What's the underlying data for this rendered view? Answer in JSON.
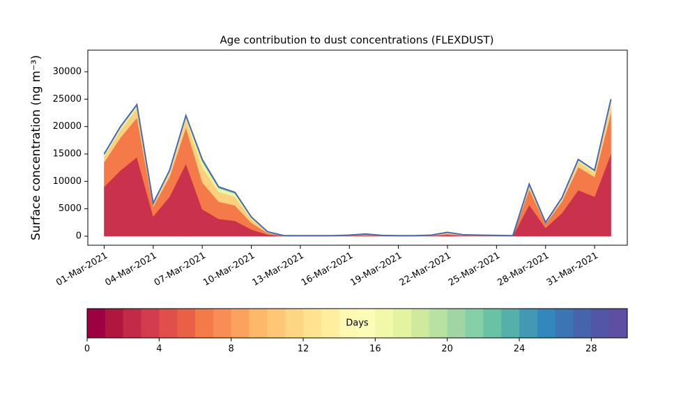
{
  "chart_data": {
    "type": "stacked-area",
    "title": "Age contribution to dust concentrations (FLEXDUST)",
    "y_label": "Surface concentration (ng m⁻³)",
    "x": [
      "2021-03-01",
      "2021-03-02",
      "2021-03-03",
      "2021-03-04",
      "2021-03-05",
      "2021-03-06",
      "2021-03-07",
      "2021-03-08",
      "2021-03-09",
      "2021-03-10",
      "2021-03-11",
      "2021-03-12",
      "2021-03-13",
      "2021-03-14",
      "2021-03-15",
      "2021-03-16",
      "2021-03-17",
      "2021-03-18",
      "2021-03-19",
      "2021-03-20",
      "2021-03-21",
      "2021-03-22",
      "2021-03-23",
      "2021-03-24",
      "2021-03-25",
      "2021-03-26",
      "2021-03-27",
      "2021-03-28",
      "2021-03-29",
      "2021-03-30",
      "2021-03-31",
      "2021-04-01"
    ],
    "series": [
      {
        "color": "#c9314c",
        "values": [
          9000,
          12000,
          14400,
          3600,
          7200,
          13200,
          4900,
          3150,
          2800,
          1225,
          280,
          30,
          30,
          30,
          30,
          60,
          120,
          45,
          30,
          30,
          60,
          210,
          75,
          60,
          45,
          30,
          5700,
          1500,
          4200,
          8400,
          7200,
          15000
        ]
      },
      {
        "color": "#f47a49",
        "values": [
          4500,
          6000,
          7200,
          1800,
          3600,
          6600,
          4900,
          3150,
          2800,
          1225,
          280,
          30,
          30,
          30,
          30,
          60,
          120,
          45,
          30,
          30,
          60,
          210,
          75,
          60,
          45,
          30,
          2850,
          750,
          2100,
          4200,
          3600,
          7500
        ]
      },
      {
        "color": "#fdd07e",
        "values": [
          1050,
          1400,
          1680,
          420,
          840,
          1540,
          2800,
          1800,
          1600,
          700,
          160,
          20,
          20,
          20,
          20,
          40,
          80,
          30,
          20,
          20,
          40,
          140,
          50,
          40,
          30,
          20,
          665,
          175,
          490,
          980,
          840,
          1750
        ]
      },
      {
        "color": "#eaf6a0",
        "values": [
          300,
          400,
          480,
          120,
          240,
          440,
          980,
          630,
          560,
          245,
          56,
          10,
          10,
          10,
          10,
          20,
          40,
          15,
          10,
          10,
          20,
          70,
          25,
          20,
          15,
          10,
          190,
          50,
          140,
          280,
          240,
          500
        ]
      },
      {
        "color": "#84cfa5",
        "values": [
          105,
          140,
          168,
          42,
          84,
          154,
          280,
          180,
          160,
          70,
          16,
          5,
          5,
          5,
          5,
          10,
          20,
          7.5,
          5,
          5,
          10,
          35,
          12.5,
          10,
          7.5,
          5,
          66.5,
          17.5,
          49,
          98,
          84,
          175
        ]
      },
      {
        "color": "#3d74b3",
        "values": [
          45,
          60,
          72,
          18,
          36,
          66,
          140,
          90,
          80,
          35,
          8,
          5,
          5,
          5,
          5,
          10,
          20,
          7.5,
          5,
          5,
          10,
          35,
          12.5,
          10,
          7.5,
          5,
          28.5,
          7.5,
          21,
          42,
          36,
          75
        ]
      }
    ],
    "outline_color": "#4a68ad",
    "xlim": [
      "2021-02-28",
      "2021-04-02"
    ],
    "xticks": [
      {
        "value": "2021-03-01",
        "label": "01-Mar-2021"
      },
      {
        "value": "2021-03-04",
        "label": "04-Mar-2021"
      },
      {
        "value": "2021-03-07",
        "label": "07-Mar-2021"
      },
      {
        "value": "2021-03-10",
        "label": "10-Mar-2021"
      },
      {
        "value": "2021-03-13",
        "label": "13-Mar-2021"
      },
      {
        "value": "2021-03-16",
        "label": "16-Mar-2021"
      },
      {
        "value": "2021-03-19",
        "label": "19-Mar-2021"
      },
      {
        "value": "2021-03-22",
        "label": "22-Mar-2021"
      },
      {
        "value": "2021-03-25",
        "label": "25-Mar-2021"
      },
      {
        "value": "2021-03-28",
        "label": "28-Mar-2021"
      },
      {
        "value": "2021-03-31",
        "label": "31-Mar-2021"
      }
    ],
    "ylim": [
      -1650,
      33940
    ],
    "yticks": [
      0,
      5000,
      10000,
      15000,
      20000,
      25000,
      30000
    ],
    "colorbar": {
      "label": "Days",
      "lim": [
        0,
        30
      ],
      "ticks": [
        0,
        4,
        8,
        12,
        16,
        20,
        24,
        28
      ],
      "colors": [
        "#9e0142",
        "#b0173f",
        "#c22a48",
        "#d33c4e",
        "#e04f4a",
        "#ea6046",
        "#f47a49",
        "#f88e53",
        "#fba35e",
        "#fdb869",
        "#fdc776",
        "#fed583",
        "#fee28f",
        "#feee9e",
        "#fff8b0",
        "#fbfcb6",
        "#f1f9a9",
        "#e3f3a0",
        "#cfea9d",
        "#b9e1a1",
        "#9fd6a4",
        "#84cfa5",
        "#6ac2a5",
        "#55afab",
        "#4399b4",
        "#3288bd",
        "#3c75b4",
        "#4664ab",
        "#5256a6",
        "#5e4fa2"
      ]
    }
  }
}
